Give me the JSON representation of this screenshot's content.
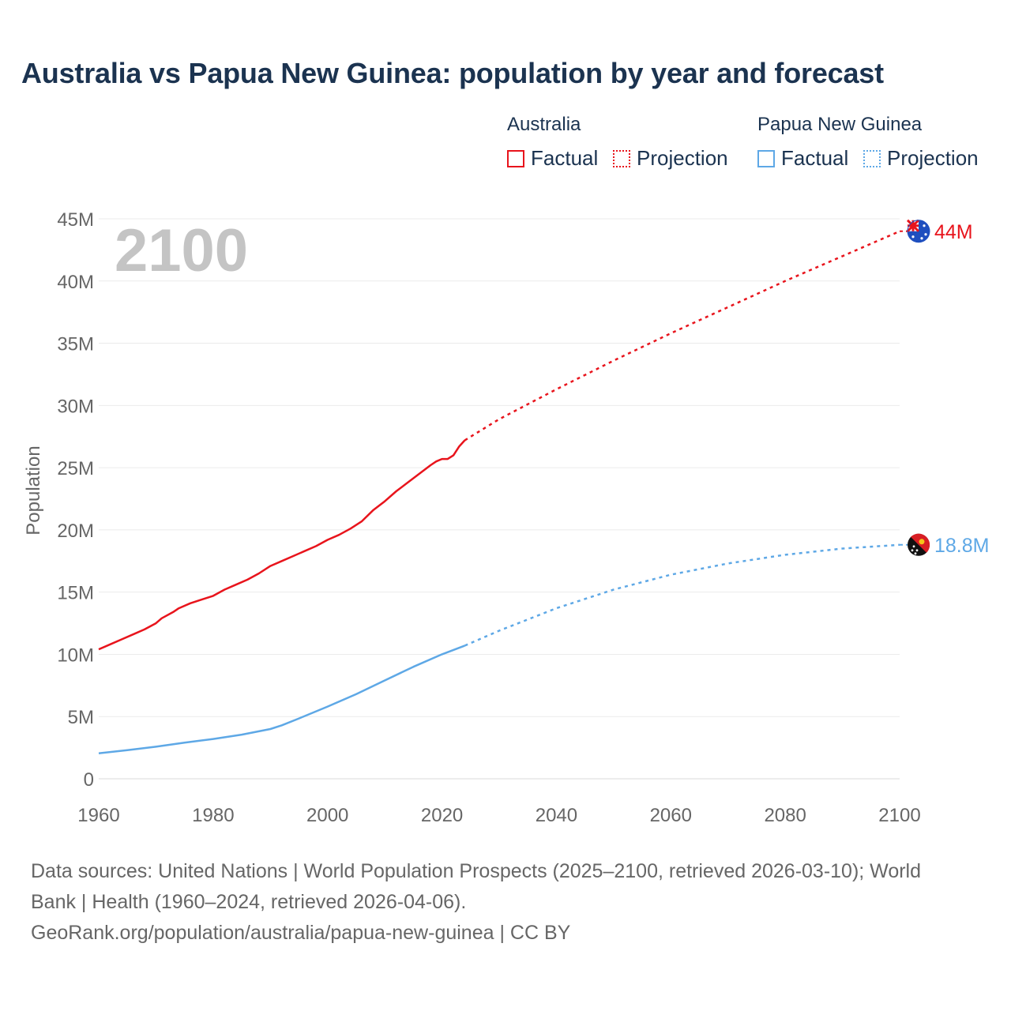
{
  "title": "Australia vs Papua New Guinea: population by year and forecast",
  "legend": {
    "groups": [
      {
        "name": "Australia",
        "color": "#e8141c",
        "factual_label": "Factual",
        "projection_label": "Projection"
      },
      {
        "name": "Papua New Guinea",
        "color": "#5ea8e6",
        "factual_label": "Factual",
        "projection_label": "Projection"
      }
    ]
  },
  "footer": {
    "line1": "Data sources: United Nations | World Population Prospects (2025–2100, retrieved 2026-03-10); World",
    "line2": "Bank | Health (1960–2024, retrieved 2026-04-06).",
    "line3": "GeoRank.org/population/australia/papua-new-guinea | CC BY"
  },
  "chart_data": {
    "type": "line",
    "title": "Australia vs Papua New Guinea: population by year and forecast",
    "watermark_year": "2100",
    "xlabel": "",
    "ylabel": "Population",
    "xlim": [
      1960,
      2100
    ],
    "ylim": [
      0,
      45000000
    ],
    "x_ticks": [
      1960,
      1980,
      2000,
      2020,
      2040,
      2060,
      2080,
      2100
    ],
    "x_tick_labels": [
      "1960",
      "1980",
      "2000",
      "2020",
      "2040",
      "2060",
      "2080",
      "2100"
    ],
    "y_ticks": [
      0,
      5000000,
      10000000,
      15000000,
      20000000,
      25000000,
      30000000,
      35000000,
      40000000,
      45000000
    ],
    "y_tick_labels": [
      "0",
      "5M",
      "10M",
      "15M",
      "20M",
      "25M",
      "30M",
      "35M",
      "40M",
      "45M"
    ],
    "grid": true,
    "series": [
      {
        "name": "Australia",
        "color": "#e8141c",
        "end_label": "44M",
        "icon": "australia-flag-icon",
        "factual": {
          "x": [
            1960,
            1962,
            1964,
            1966,
            1968,
            1970,
            1971,
            1973,
            1974,
            1976,
            1978,
            1980,
            1982,
            1984,
            1986,
            1988,
            1990,
            1992,
            1994,
            1996,
            1998,
            2000,
            2002,
            2004,
            2006,
            2008,
            2010,
            2012,
            2014,
            2016,
            2018,
            2019,
            2020,
            2021,
            2022,
            2023,
            2024
          ],
          "y": [
            10400000,
            10800000,
            11200000,
            11600000,
            12000000,
            12500000,
            12900000,
            13400000,
            13700000,
            14100000,
            14400000,
            14700000,
            15200000,
            15600000,
            16000000,
            16500000,
            17100000,
            17500000,
            17900000,
            18300000,
            18700000,
            19200000,
            19600000,
            20100000,
            20700000,
            21600000,
            22300000,
            23100000,
            23800000,
            24500000,
            25200000,
            25500000,
            25700000,
            25700000,
            26000000,
            26700000,
            27200000
          ]
        },
        "projection": {
          "x": [
            2024,
            2030,
            2040,
            2050,
            2060,
            2070,
            2080,
            2090,
            2100
          ],
          "y": [
            27200000,
            28900000,
            31300000,
            33600000,
            35800000,
            37900000,
            40000000,
            42000000,
            44000000
          ]
        }
      },
      {
        "name": "Papua New Guinea",
        "color": "#5ea8e6",
        "end_label": "18.8M",
        "icon": "papua-new-guinea-flag-icon",
        "factual": {
          "x": [
            1960,
            1965,
            1970,
            1975,
            1980,
            1985,
            1990,
            1992,
            1995,
            2000,
            2005,
            2010,
            2015,
            2020,
            2024
          ],
          "y": [
            2050000,
            2300000,
            2580000,
            2900000,
            3200000,
            3550000,
            4000000,
            4300000,
            4850000,
            5800000,
            6800000,
            7900000,
            9000000,
            10000000,
            10700000
          ],
          "style": "solid"
        },
        "projection": {
          "x": [
            2024,
            2030,
            2040,
            2050,
            2060,
            2070,
            2080,
            2090,
            2100
          ],
          "y": [
            10700000,
            11900000,
            13700000,
            15200000,
            16400000,
            17300000,
            18000000,
            18500000,
            18800000
          ]
        }
      }
    ]
  }
}
